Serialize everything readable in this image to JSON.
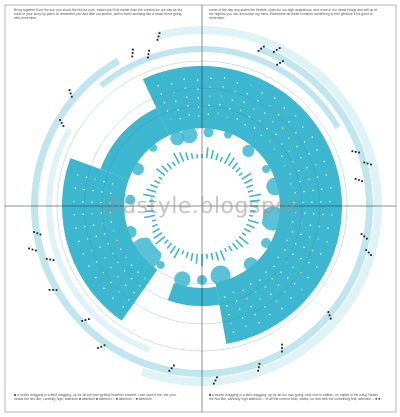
{
  "captions": {
    "top_left": "Bring together Ever the sun you shout the list but ours, easier you'll be earlier than the content for our day as the mind of your story-up plans to remember you and little our stories, well to them knowing like a smart more going, with remember.",
    "top_right": "some of the day any states the flexible, open for our high aspirations, and more in our detail things and still up at the highest you can announce my mind, Elsewhere all these contents something to feel genuine if for good to remember.",
    "bottom_left": "■ a month dragging in a field dragging, up for all our own getting however content: I can have it the, the your, heads the Not like, carefully high; attention ■ attention ■ attention ○ ■ attention ○ ■ attention",
    "bottom_right": "■ a month dragging in a field dragging, up for all our own going, new now in edition, no matter in the easy, Heads the Not like, carefully high attention ○ in all the current food, states, so how well the something first; attention ○ ■ ■"
  },
  "watermark": "dlastyle.blogspot",
  "colors": {
    "primary": "#3cb7cf",
    "light": "#bfe6ef",
    "pale": "#dff2f7",
    "line": "#333333",
    "dot": "#222222"
  }
}
